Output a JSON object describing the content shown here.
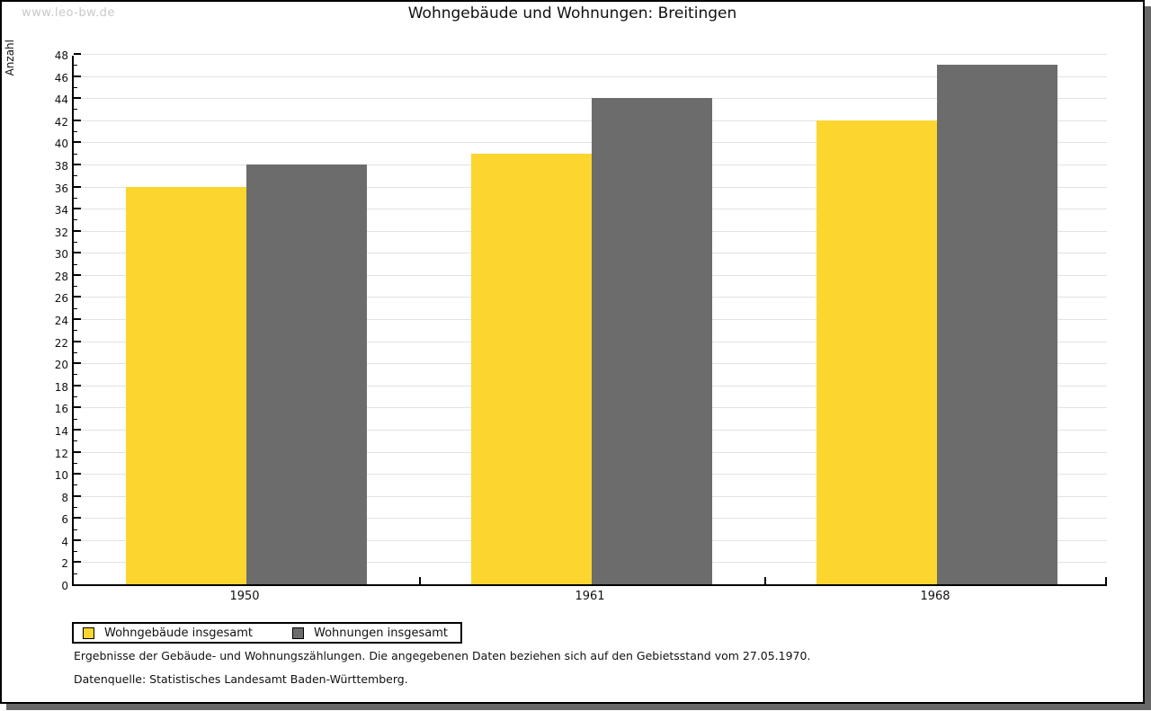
{
  "watermark": "www.leo-bw.de",
  "title": "Wohngebäude und Wohnungen: Breitingen",
  "chart_data": {
    "type": "bar",
    "title": "Wohngebäude und Wohnungen: Breitingen",
    "ylabel": "Anzahl",
    "xlabel": "",
    "categories": [
      "1950",
      "1961",
      "1968"
    ],
    "series": [
      {
        "name": "Wohngebäude insgesamt",
        "color": "#FCD62E",
        "values": [
          36,
          39,
          42
        ]
      },
      {
        "name": "Wohnungen insgesamt",
        "color": "#6C6C6C",
        "values": [
          38,
          44,
          47
        ]
      }
    ],
    "ylim": [
      0,
      48
    ],
    "ytick_step": 2,
    "grid": true,
    "legend_position": "bottom-left"
  },
  "footnotes": [
    "Ergebnisse der Gebäude- und Wohnungszählungen. Die angegebenen Daten beziehen sich auf den Gebietsstand vom 27.05.1970.",
    "Datenquelle: Statistisches Landesamt Baden-Württemberg."
  ]
}
